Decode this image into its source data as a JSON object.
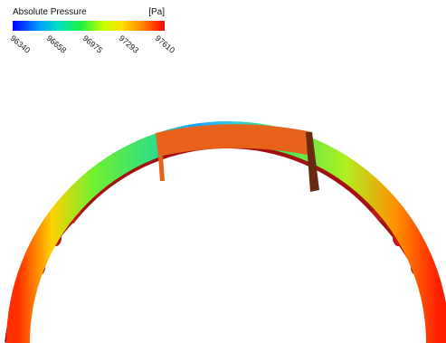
{
  "legend": {
    "title": "Absolute Pressure",
    "unit": "[Pa]",
    "ticks": [
      "96340",
      "96658",
      "96975",
      "97293",
      "97610"
    ]
  },
  "colors": {
    "low": "#0000ff",
    "mid": "#20f040",
    "high": "#ff0000",
    "housing": "#e8621a",
    "housing_side": "#6a2a10"
  }
}
